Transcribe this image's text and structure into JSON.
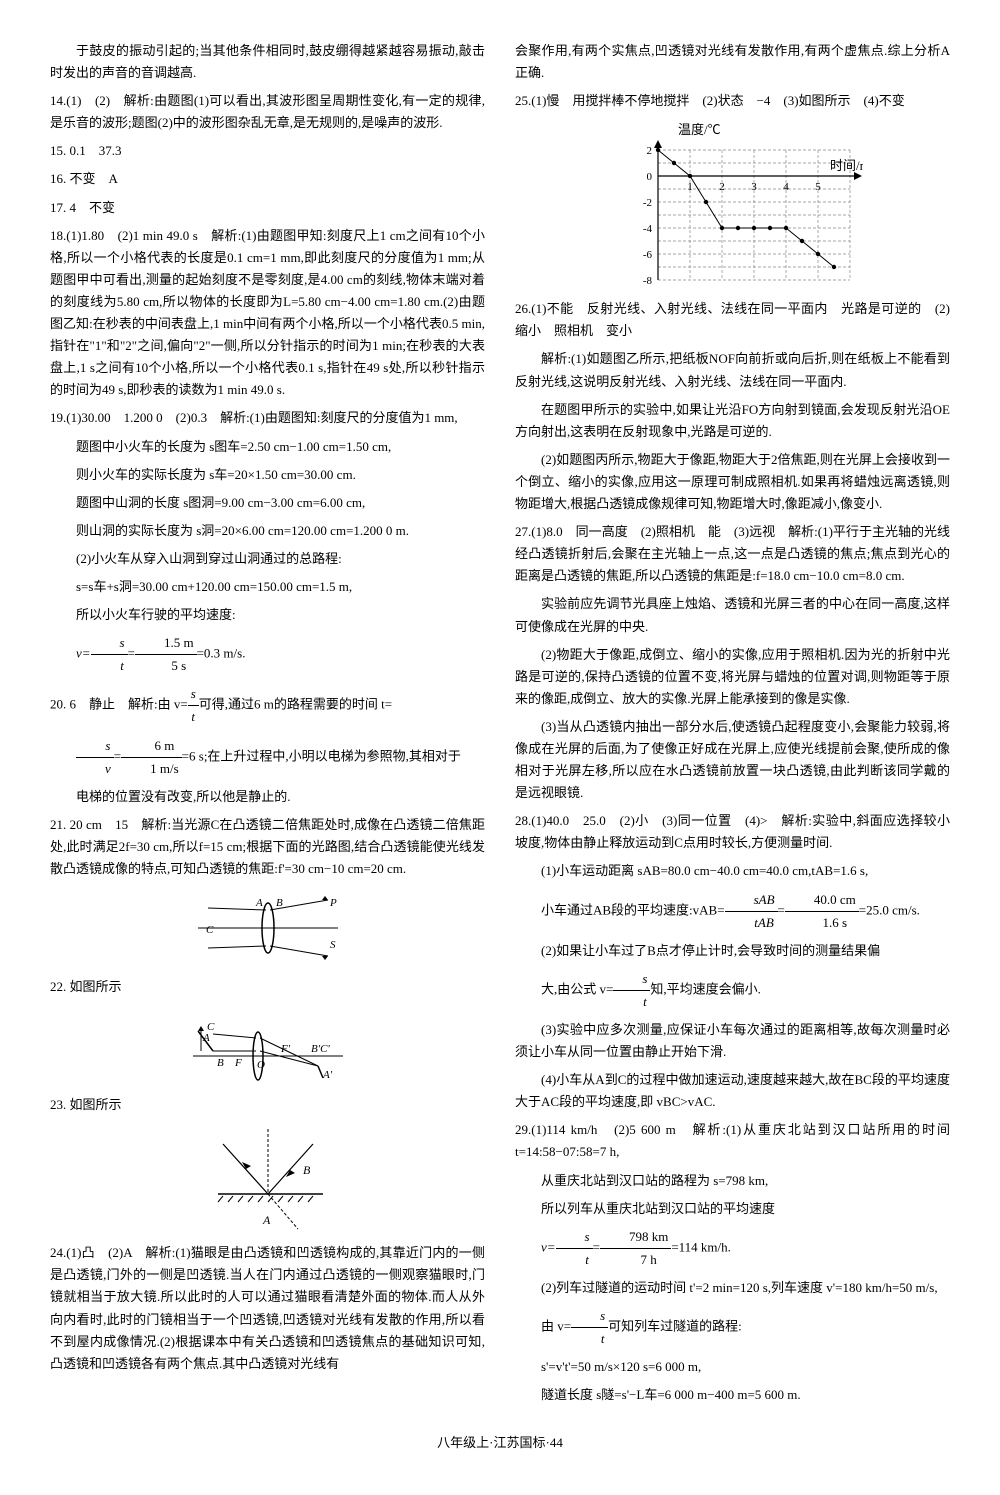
{
  "left": {
    "q13_cont": "于鼓皮的振动引起的;当其他条件相同时,鼓皮绷得越紧越容易振动,敲击时发出的声音的音调越高.",
    "q14": "14.(1)　(2)　解析:由题图(1)可以看出,其波形图呈周期性变化,有一定的规律,是乐音的波形;题图(2)中的波形图杂乱无章,是无规则的,是噪声的波形.",
    "q15": "15. 0.1　37.3",
    "q16": "16. 不变　A",
    "q17": "17. 4　不变",
    "q18": "18.(1)1.80　(2)1 min 49.0 s　解析:(1)由题图甲知:刻度尺上1 cm之间有10个小格,所以一个小格代表的长度是0.1 cm=1 mm,即此刻度尺的分度值为1 mm;从题图甲中可看出,测量的起始刻度不是零刻度,是4.00 cm的刻线,物体末端对着的刻度线为5.80 cm,所以物体的长度即为L=5.80 cm−4.00 cm=1.80 cm.(2)由题图乙知:在秒表的中间表盘上,1 min中间有两个小格,所以一个小格代表0.5 min,指针在\"1\"和\"2\"之间,偏向\"2\"一侧,所以分针指示的时间为1 min;在秒表的大表盘上,1 s之间有10个小格,所以一个小格代表0.1 s,指针在49 s处,所以秒针指示的时间为49 s,即秒表的读数为1 min 49.0 s.",
    "q19_a": "19.(1)30.00　1.200 0　(2)0.3　解析:(1)由题图知:刻度尺的分度值为1 mm,",
    "q19_b": "题图中小火车的长度为 s图车=2.50 cm−1.00 cm=1.50 cm,",
    "q19_c": "则小火车的实际长度为 s车=20×1.50 cm=30.00 cm.",
    "q19_d": "题图中山洞的长度 s图洞=9.00 cm−3.00 cm=6.00 cm,",
    "q19_e": "则山洞的实际长度为 s洞=20×6.00 cm=120.00 cm=1.200 0 m.",
    "q19_f": "(2)小火车从穿入山洞到穿过山洞通过的总路程:",
    "q19_g": "s=s车+s洞=30.00 cm+120.00 cm=150.00 cm=1.5 m,",
    "q19_h": "所以小火车行驶的平均速度:",
    "q19_v": {
      "pre": "v=",
      "n1": "s",
      "d1": "t",
      "mid": "=",
      "n2": "1.5 m",
      "d2": "5 s",
      "suf": "=0.3 m/s."
    },
    "q20_a": "20. 6　静止　解析:由 v=",
    "q20_a2": "可得,通过6 m的路程需要的时间 t=",
    "q20_f1": {
      "n": "s",
      "d": "t"
    },
    "q20_f2": {
      "n": "s",
      "d": "v",
      "mid": "=",
      "n2": "6 m",
      "d2": "1 m/s",
      "suf": "=6 s;在上升过程中,小明以电梯为参照物,其相对于"
    },
    "q20_b": "电梯的位置没有改变,所以他是静止的.",
    "q21": "21. 20 cm　15　解析:当光源C在凸透镜二倍焦距处时,成像在凸透镜二倍焦距处,此时满足2f=30 cm,所以f=15 cm;根据下面的光路图,结合凸透镜能使光线发散凸透镜成像的特点,可知凸透镜的焦距:f'=30 cm−10 cm=20 cm.",
    "q22": "22. 如图所示",
    "q23": "23. 如图所示",
    "q24": "24.(1)凸　(2)A　解析:(1)猫眼是由凸透镜和凹透镜构成的,其靠近门内的一侧是凸透镜,门外的一侧是凹透镜.当人在门内通过凸透镜的一侧观察猫眼时,门镜就相当于放大镜.所以此时的人可以通过猫眼看清楚外面的物体.而人从外向内看时,此时的门镜相当于一个凹透镜,凹透镜对光线有发散的作用,所以看不到屋内成像情况.(2)根据课本中有关凸透镜和凹透镜焦点的基础知识可知,凸透镜和凹透镜各有两个焦点.其中凸透镜对光线有"
  },
  "right": {
    "q24_cont": "会聚作用,有两个实焦点,凹透镜对光线有发散作用,有两个虚焦点.综上分析A正确.",
    "q25_a": "25.(1)慢　用搅拌棒不停地搅拌　(2)状态　−4　(3)如图所示　(4)不变",
    "chart": {
      "y_label": "温度/℃",
      "x_label": "时间/min",
      "y_ticks": [
        2,
        0,
        -2,
        -4,
        -6,
        -8
      ],
      "x_ticks": [
        1,
        2,
        3,
        4,
        5
      ],
      "grid_x_max": 6,
      "grid_y_min": -8,
      "grid_y_max": 2,
      "point_color": "#000000",
      "grid_color": "#888888",
      "dash": "3,2"
    },
    "q26_a": "26.(1)不能　反射光线、入射光线、法线在同一平面内　光路是可逆的　(2)缩小　照相机　变小",
    "q26_b": "解析:(1)如题图乙所示,把纸板NOF向前折或向后折,则在纸板上不能看到反射光线,这说明反射光线、入射光线、法线在同一平面内.",
    "q26_c": "在题图甲所示的实验中,如果让光沿FO方向射到镜面,会发现反射光沿OE方向射出,这表明在反射现象中,光路是可逆的.",
    "q26_d": "(2)如题图丙所示,物距大于像距,物距大于2倍焦距,则在光屏上会接收到一个倒立、缩小的实像,应用这一原理可制成照相机.如果再将蜡烛远离透镜,则物距增大,根据凸透镜成像规律可知,物距增大时,像距减小,像变小.",
    "q27_a": "27.(1)8.0　同一高度　(2)照相机　能　(3)远视　解析:(1)平行于主光轴的光线经凸透镜折射后,会聚在主光轴上一点,这一点是凸透镜的焦点;焦点到光心的距离是凸透镜的焦距,所以凸透镜的焦距是:f=18.0 cm−10.0 cm=8.0 cm.",
    "q27_b": "实验前应先调节光具座上烛焰、透镜和光屏三者的中心在同一高度,这样可使像成在光屏的中央.",
    "q27_c": "(2)物距大于像距,成倒立、缩小的实像,应用于照相机.因为光的折射中光路是可逆的,保持凸透镜的位置不变,将光屏与蜡烛的位置对调,则物距等于原来的像距,成倒立、放大的实像.光屏上能承接到的像是实像.",
    "q27_d": "(3)当从凸透镜内抽出一部分水后,使透镜凸起程度变小,会聚能力较弱,将像成在光屏的后面,为了使像正好成在光屏上,应使光线提前会聚,使所成的像相对于光屏左移,所以应在水凸透镜前放置一块凸透镜,由此判断该同学戴的是远视眼镜.",
    "q28_a": "28.(1)40.0　25.0　(2)小　(3)同一位置　(4)>　解析:实验中,斜面应选择较小坡度,物体由静止释放运动到C点用时较长,方便测量时间.",
    "q28_b": "(1)小车运动距离 sAB=80.0 cm−40.0 cm=40.0 cm,tAB=1.6 s,",
    "q28_c_pre": "小车通过AB段的平均速度:vAB=",
    "q28_c_f": {
      "n": "sAB",
      "d": "tAB",
      "mid": "=",
      "n2": "40.0 cm",
      "d2": "1.6 s",
      "suf": "=25.0 cm/s."
    },
    "q28_d": "(2)如果让小车过了B点才停止计时,会导致时间的测量结果偏",
    "q28_e_pre": "大,由公式 v=",
    "q28_e_f": {
      "n": "s",
      "d": "t"
    },
    "q28_e_suf": "知,平均速度会偏小.",
    "q28_f": "(3)实验中应多次测量,应保证小车每次通过的距离相等,故每次测量时必须让小车从同一位置由静止开始下滑.",
    "q28_g": "(4)小车从A到C的过程中做加速运动,速度越来越大,故在BC段的平均速度大于AC段的平均速度,即 vBC>vAC.",
    "q29_a": "29.(1)114 km/h　(2)5 600 m　解析:(1)从重庆北站到汉口站所用的时间 t=14:58−07:58=7 h,",
    "q29_b": "从重庆北站到汉口站的路程为 s=798 km,",
    "q29_c": "所以列车从重庆北站到汉口站的平均速度",
    "q29_v": {
      "pre": "v=",
      "n1": "s",
      "d1": "t",
      "mid": "=",
      "n2": "798 km",
      "d2": "7 h",
      "suf": "=114 km/h."
    },
    "q29_d": "(2)列车过隧道的运动时间 t'=2 min=120 s,列车速度 v'=180 km/h=50 m/s,",
    "q29_e_pre": "由 v=",
    "q29_e_f": {
      "n": "s",
      "d": "t"
    },
    "q29_e_suf": "可知列车过隧道的路程:",
    "q29_f": "s'=v't'=50 m/s×120 s=6 000 m,",
    "q29_g": "隧道长度 s隧=s'−L车=6 000 m−400 m=5 600 m."
  },
  "footer": "八年级上·江苏国标·44"
}
